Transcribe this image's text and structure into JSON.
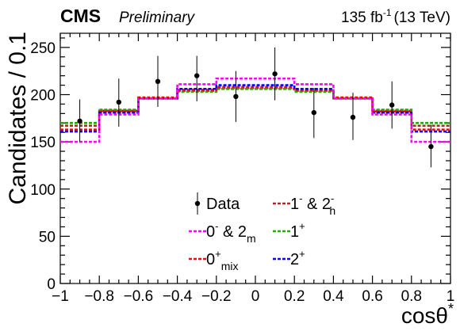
{
  "header": {
    "experiment": "CMS",
    "status": "Preliminary",
    "lumi_value": "135 fb",
    "lumi_exp": "-1",
    "energy": "(13 TeV)"
  },
  "chart_data": {
    "type": "line",
    "xlabel_main": "cosθ",
    "xlabel_sup": "*",
    "ylabel": "Candidates / 0.1",
    "xlim": [
      -1,
      1
    ],
    "ylim": [
      0,
      265
    ],
    "x_ticks": [
      -1,
      -0.8,
      -0.6,
      -0.4,
      -0.2,
      0,
      0.2,
      0.4,
      0.6,
      0.8,
      1
    ],
    "x_tick_labels": [
      "−1",
      "−0.8",
      "−0.6",
      "−0.4",
      "−0.2",
      "0",
      "0.2",
      "0.4",
      "0.6",
      "0.8",
      "1"
    ],
    "y_ticks": [
      0,
      50,
      100,
      150,
      200,
      250
    ],
    "y_tick_labels": [
      "0",
      "50",
      "100",
      "150",
      "200",
      "250"
    ],
    "bin_edges": [
      -1,
      -0.8,
      -0.6,
      -0.4,
      -0.2,
      0,
      0.2,
      0.4,
      0.6,
      0.8,
      1
    ],
    "data": {
      "name": "Data",
      "x": [
        -0.9,
        -0.7,
        -0.5,
        -0.3,
        -0.1,
        0.1,
        0.3,
        0.5,
        0.7,
        0.9
      ],
      "y": [
        172,
        192,
        214,
        220,
        198,
        222,
        181,
        176,
        189,
        145
      ],
      "err_low": [
        22,
        26,
        27,
        27,
        27,
        28,
        27,
        24,
        25,
        22
      ],
      "err_high": [
        23,
        25,
        27,
        21,
        27,
        28,
        26,
        26,
        25,
        23
      ]
    },
    "series": [
      {
        "name": "1⁻ & 2ₕ⁻",
        "color": "#a52a2a",
        "values": [
          167,
          183,
          196,
          204,
          207,
          207,
          204,
          196,
          183,
          167
        ]
      },
      {
        "name": "1⁺",
        "color": "#22aa00",
        "values": [
          170,
          184,
          196,
          203,
          206,
          206,
          203,
          196,
          184,
          170
        ]
      },
      {
        "name": "0⁺mix",
        "color": "#ff0000",
        "values": [
          163,
          182,
          197,
          205,
          208,
          208,
          205,
          197,
          182,
          163
        ]
      },
      {
        "name": "2⁺",
        "color": "#0000ff",
        "values": [
          161,
          181,
          196,
          206,
          210,
          210,
          206,
          196,
          181,
          161
        ]
      },
      {
        "name": "0⁻ & 2ₘ⁻",
        "color": "#ff00ff",
        "values": [
          150,
          179,
          196,
          211,
          217,
          217,
          211,
          196,
          179,
          150
        ]
      }
    ],
    "legend": {
      "placement": "bottom-center",
      "items": [
        {
          "kind": "data",
          "main": "Data",
          "sup": "",
          "sub": "",
          "color": "#000000"
        },
        {
          "kind": "line",
          "main": "1",
          "sup": "-",
          "mid": " & 2",
          "sup2": "-",
          "sub2": "h",
          "color": "#a52a2a"
        },
        {
          "kind": "line",
          "main": "0",
          "sup": "-",
          "mid": " & 2",
          "sup2": "",
          "sub2": "m",
          "color": "#ff00ff"
        },
        {
          "kind": "line",
          "main": "1",
          "sup": "+",
          "mid": "",
          "sup2": "",
          "sub2": "",
          "color": "#22aa00"
        },
        {
          "kind": "line",
          "main": "0",
          "sup": "+",
          "mid": "",
          "sup2": "",
          "sub2": "mix",
          "color": "#ff0000"
        },
        {
          "kind": "line",
          "main": "2",
          "sup": "+",
          "mid": "",
          "sup2": "",
          "sub2": "",
          "color": "#0000ff"
        }
      ]
    }
  }
}
